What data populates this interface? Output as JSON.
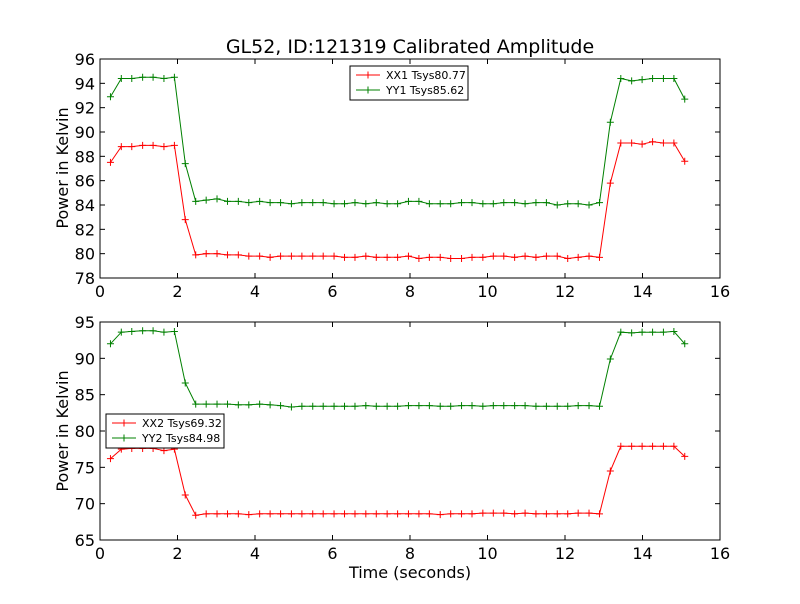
{
  "figure_title": "GL52, ID:121319 Calibrated Amplitude",
  "colors": {
    "series_xx": "#ff0000",
    "series_yy": "#008000"
  },
  "chart_data": [
    {
      "type": "line",
      "title": "GL52, ID:121319 Calibrated Amplitude",
      "xlabel": "",
      "ylabel": "Power in Kelvin",
      "xlim": [
        0,
        16
      ],
      "ylim": [
        78,
        96
      ],
      "xticks": [
        "0",
        "2",
        "4",
        "6",
        "8",
        "10",
        "12",
        "14",
        "16"
      ],
      "yticks": [
        "78",
        "80",
        "82",
        "84",
        "86",
        "88",
        "90",
        "92",
        "94",
        "96"
      ],
      "grid": false,
      "legend_position": "top-center",
      "x": [
        0.27,
        0.55,
        0.82,
        1.1,
        1.37,
        1.65,
        1.92,
        2.2,
        2.47,
        2.74,
        3.02,
        3.29,
        3.57,
        3.84,
        4.12,
        4.39,
        4.66,
        4.94,
        5.21,
        5.49,
        5.76,
        6.04,
        6.31,
        6.58,
        6.86,
        7.13,
        7.41,
        7.68,
        7.96,
        8.23,
        8.5,
        8.78,
        9.05,
        9.33,
        9.6,
        9.88,
        10.15,
        10.42,
        10.7,
        10.97,
        11.25,
        11.52,
        11.8,
        12.07,
        12.34,
        12.62,
        12.89,
        13.17,
        13.44,
        13.72,
        13.99,
        14.26,
        14.54,
        14.81,
        15.09
      ],
      "series": [
        {
          "name": "XX1 Tsys80.77",
          "color": "#ff0000",
          "values": [
            87.5,
            88.8,
            88.8,
            88.9,
            88.9,
            88.8,
            88.9,
            82.8,
            79.9,
            80.0,
            80.0,
            79.9,
            79.9,
            79.8,
            79.8,
            79.7,
            79.8,
            79.8,
            79.8,
            79.8,
            79.8,
            79.8,
            79.7,
            79.7,
            79.8,
            79.7,
            79.7,
            79.7,
            79.8,
            79.6,
            79.7,
            79.7,
            79.6,
            79.6,
            79.7,
            79.7,
            79.8,
            79.8,
            79.7,
            79.8,
            79.7,
            79.8,
            79.8,
            79.6,
            79.7,
            79.8,
            79.7,
            85.8,
            89.1,
            89.1,
            89.0,
            89.2,
            89.1,
            89.1,
            87.6
          ]
        },
        {
          "name": "YY1 Tsys85.62",
          "color": "#008000",
          "values": [
            92.9,
            94.4,
            94.4,
            94.5,
            94.5,
            94.4,
            94.5,
            87.4,
            84.3,
            84.4,
            84.5,
            84.3,
            84.3,
            84.2,
            84.3,
            84.2,
            84.2,
            84.1,
            84.2,
            84.2,
            84.2,
            84.1,
            84.1,
            84.2,
            84.1,
            84.2,
            84.1,
            84.1,
            84.3,
            84.3,
            84.1,
            84.1,
            84.1,
            84.2,
            84.2,
            84.1,
            84.1,
            84.2,
            84.2,
            84.1,
            84.2,
            84.2,
            84.0,
            84.1,
            84.1,
            84.0,
            84.2,
            90.8,
            94.4,
            94.2,
            94.3,
            94.4,
            94.4,
            94.4,
            92.7
          ]
        }
      ]
    },
    {
      "type": "line",
      "title": "",
      "xlabel": "Time (seconds)",
      "ylabel": "Power in Kelvin",
      "xlim": [
        0,
        16
      ],
      "ylim": [
        65,
        95
      ],
      "xticks": [
        "0",
        "2",
        "4",
        "6",
        "8",
        "10",
        "12",
        "14",
        "16"
      ],
      "yticks": [
        "65",
        "70",
        "75",
        "80",
        "85",
        "90",
        "95"
      ],
      "grid": false,
      "legend_position": "center-left",
      "x": [
        0.27,
        0.55,
        0.82,
        1.1,
        1.37,
        1.65,
        1.92,
        2.2,
        2.47,
        2.74,
        3.02,
        3.29,
        3.57,
        3.84,
        4.12,
        4.39,
        4.66,
        4.94,
        5.21,
        5.49,
        5.76,
        6.04,
        6.31,
        6.58,
        6.86,
        7.13,
        7.41,
        7.68,
        7.96,
        8.23,
        8.5,
        8.78,
        9.05,
        9.33,
        9.6,
        9.88,
        10.15,
        10.42,
        10.7,
        10.97,
        11.25,
        11.52,
        11.8,
        12.07,
        12.34,
        12.62,
        12.89,
        13.17,
        13.44,
        13.72,
        13.99,
        14.26,
        14.54,
        14.81,
        15.09
      ],
      "series": [
        {
          "name": "XX2 Tsys69.32",
          "color": "#ff0000",
          "values": [
            76.2,
            77.5,
            77.6,
            77.6,
            77.6,
            77.3,
            77.5,
            71.2,
            68.4,
            68.6,
            68.6,
            68.6,
            68.6,
            68.5,
            68.6,
            68.6,
            68.6,
            68.6,
            68.6,
            68.6,
            68.6,
            68.6,
            68.6,
            68.6,
            68.6,
            68.6,
            68.6,
            68.6,
            68.6,
            68.6,
            68.6,
            68.5,
            68.6,
            68.6,
            68.6,
            68.7,
            68.7,
            68.7,
            68.6,
            68.7,
            68.6,
            68.6,
            68.6,
            68.6,
            68.7,
            68.7,
            68.6,
            74.5,
            77.9,
            77.9,
            77.9,
            77.9,
            77.9,
            77.9,
            76.5
          ]
        },
        {
          "name": "YY2 Tsys84.98",
          "color": "#008000",
          "values": [
            92.0,
            93.6,
            93.7,
            93.8,
            93.8,
            93.6,
            93.7,
            86.6,
            83.7,
            83.7,
            83.7,
            83.7,
            83.6,
            83.6,
            83.7,
            83.6,
            83.5,
            83.3,
            83.4,
            83.4,
            83.4,
            83.4,
            83.4,
            83.4,
            83.5,
            83.4,
            83.4,
            83.4,
            83.5,
            83.5,
            83.5,
            83.4,
            83.4,
            83.5,
            83.5,
            83.4,
            83.5,
            83.5,
            83.5,
            83.5,
            83.4,
            83.4,
            83.4,
            83.4,
            83.5,
            83.5,
            83.4,
            89.9,
            93.6,
            93.5,
            93.6,
            93.6,
            93.6,
            93.7,
            92.0
          ]
        }
      ]
    }
  ]
}
